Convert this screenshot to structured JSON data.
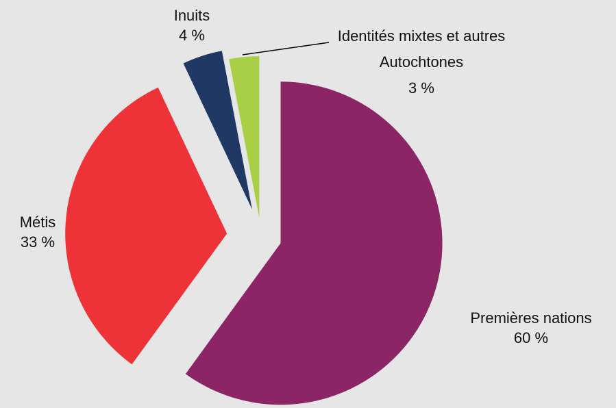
{
  "chart_data": {
    "type": "pie",
    "categories": [
      "Premières nations",
      "Métis",
      "Inuits",
      "Identités mixtes et autres Autochtones"
    ],
    "values": [
      60,
      33,
      4,
      3
    ],
    "value_labels": [
      "60 %",
      "33 %",
      "4 %",
      "3 %"
    ],
    "colors": [
      "#8b2566",
      "#ee3338",
      "#1f3864",
      "#a9cf46"
    ]
  }
}
